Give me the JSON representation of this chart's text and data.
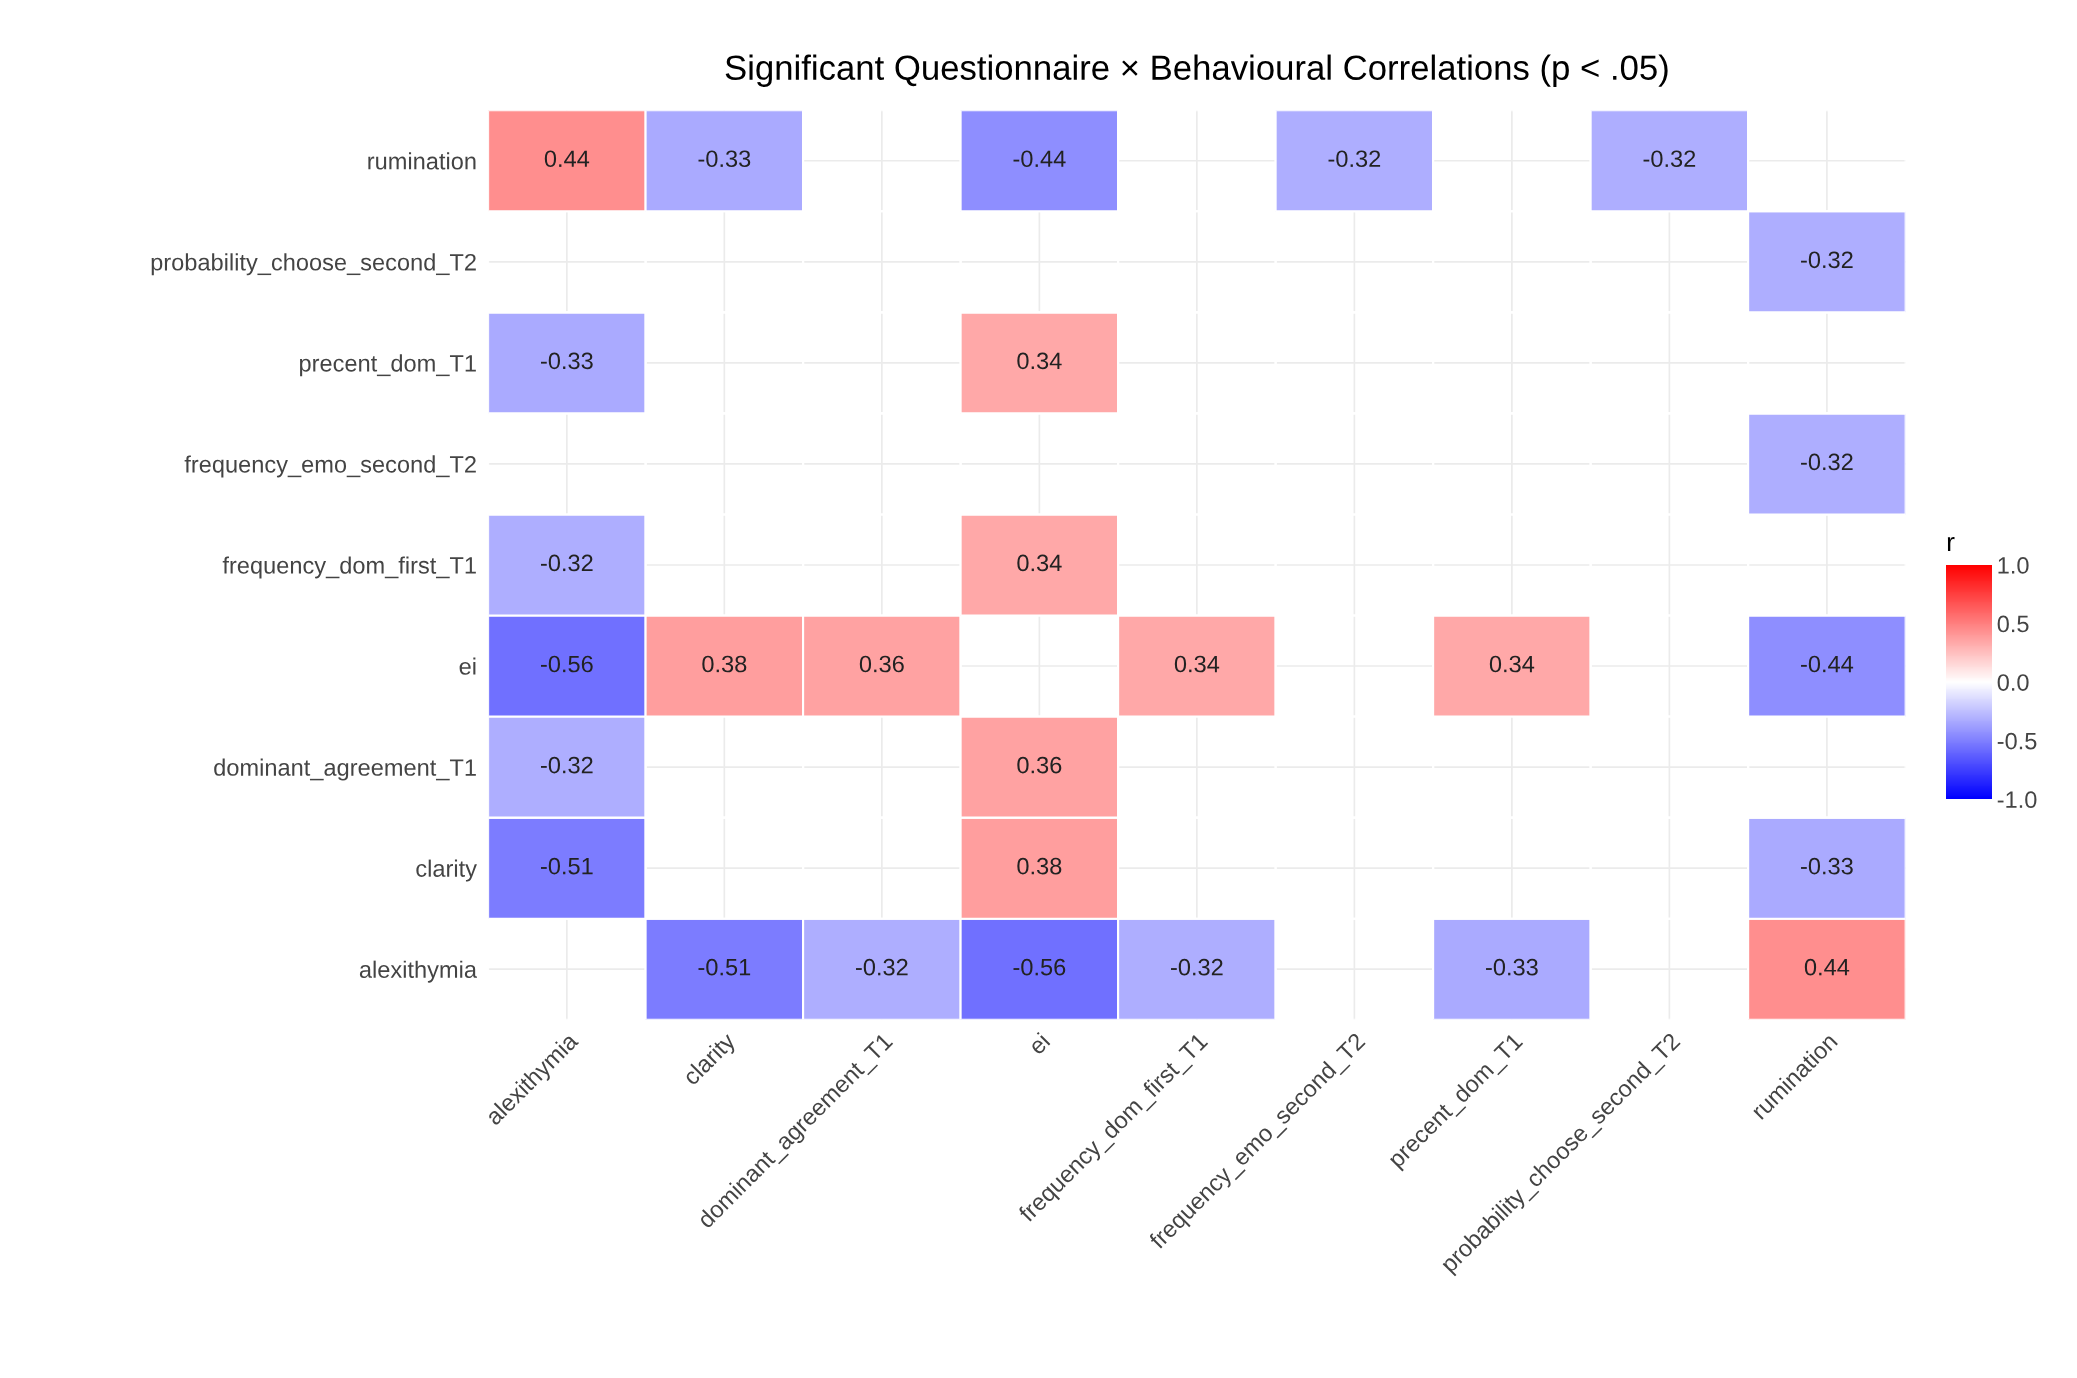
{
  "chart_data": {
    "type": "heatmap",
    "title": "Significant Questionnaire × Behavioural Correlations (p < .05)",
    "categories": [
      "alexithymia",
      "clarity",
      "dominant_agreement_T1",
      "ei",
      "frequency_dom_first_T1",
      "frequency_emo_second_T2",
      "precent_dom_T1",
      "probability_choose_second_T2",
      "rumination"
    ],
    "y_categories": [
      "rumination",
      "probability_choose_second_T2",
      "precent_dom_T1",
      "frequency_emo_second_T2",
      "frequency_dom_first_T1",
      "ei",
      "dominant_agreement_T1",
      "clarity",
      "alexithymia"
    ],
    "cells": [
      [
        0.44,
        -0.33,
        null,
        -0.44,
        null,
        -0.32,
        null,
        -0.32,
        null
      ],
      [
        null,
        null,
        null,
        null,
        null,
        null,
        null,
        null,
        -0.32
      ],
      [
        -0.33,
        null,
        null,
        0.34,
        null,
        null,
        null,
        null,
        null
      ],
      [
        null,
        null,
        null,
        null,
        null,
        null,
        null,
        null,
        -0.32
      ],
      [
        -0.32,
        null,
        null,
        0.34,
        null,
        null,
        null,
        null,
        null
      ],
      [
        -0.56,
        0.38,
        0.36,
        null,
        0.34,
        null,
        0.34,
        null,
        -0.44
      ],
      [
        -0.32,
        null,
        null,
        0.36,
        null,
        null,
        null,
        null,
        null
      ],
      [
        -0.51,
        null,
        null,
        0.38,
        null,
        null,
        null,
        null,
        -0.33
      ],
      [
        null,
        -0.51,
        -0.32,
        -0.56,
        -0.32,
        null,
        -0.33,
        null,
        0.44
      ]
    ],
    "colors": [
      "#0000ff",
      "#ffffff",
      "#ff0000"
    ],
    "clim": [
      -1.0,
      1.0
    ],
    "cticks": [
      {
        "value": -1.0,
        "label": "-1.0"
      },
      {
        "value": -0.5,
        "label": "-0.5"
      },
      {
        "value": 0.0,
        "label": "0.0"
      },
      {
        "value": 0.5,
        "label": "0.5"
      },
      {
        "value": 1.0,
        "label": "1.0"
      }
    ],
    "clabel": "r",
    "data_labels": true,
    "grid": true
  }
}
